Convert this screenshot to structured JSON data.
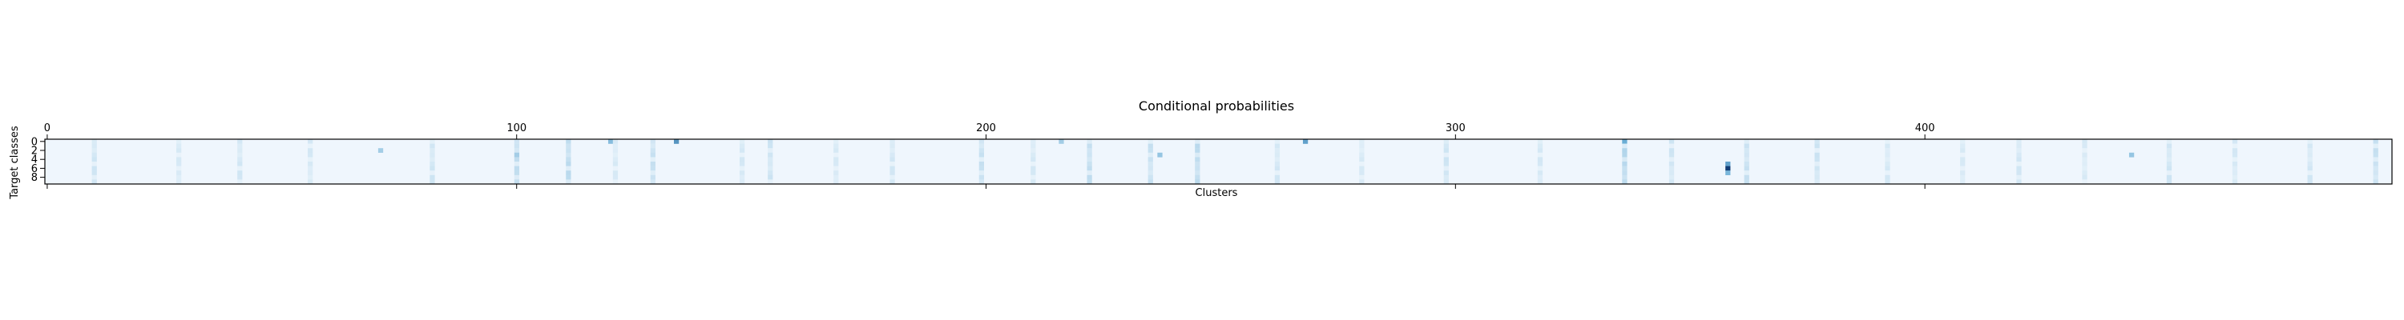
{
  "chart_data": {
    "type": "heatmap",
    "title": "Conditional probabilities",
    "xlabel": "Clusters",
    "ylabel": "Target classes",
    "xlim": [
      0,
      500
    ],
    "ylim": [
      0,
      9
    ],
    "x_ticks": [
      0,
      100,
      200,
      300,
      400
    ],
    "x_tick_labels": [
      "0",
      "100",
      "200",
      "300",
      "400"
    ],
    "y_ticks": [
      0,
      2,
      4,
      6,
      8
    ],
    "y_tick_labels": [
      "0",
      "2",
      "4",
      "6",
      "8"
    ],
    "colormap": "Blues",
    "colors": {
      "low": "#f7fbff",
      "mid": "#6baed6",
      "high": "#08306b"
    },
    "n_clusters": 500,
    "n_classes": 10,
    "baseline_value": 0.03,
    "highlight_cells": [
      {
        "cluster": 358,
        "class": 6,
        "value": 0.95
      },
      {
        "cluster": 358,
        "class": 5,
        "value": 0.55
      },
      {
        "cluster": 358,
        "class": 7,
        "value": 0.45
      },
      {
        "cluster": 134,
        "class": 0,
        "value": 0.6
      },
      {
        "cluster": 268,
        "class": 0,
        "value": 0.55
      },
      {
        "cluster": 336,
        "class": 0,
        "value": 0.5
      },
      {
        "cluster": 120,
        "class": 0,
        "value": 0.4
      },
      {
        "cluster": 71,
        "class": 2,
        "value": 0.3
      },
      {
        "cluster": 237,
        "class": 3,
        "value": 0.35
      },
      {
        "cluster": 100,
        "class": 3,
        "value": 0.3
      },
      {
        "cluster": 444,
        "class": 3,
        "value": 0.35
      },
      {
        "cluster": 216,
        "class": 0,
        "value": 0.3
      }
    ],
    "highlight_columns": [
      {
        "cluster": 10,
        "value": 0.15
      },
      {
        "cluster": 28,
        "value": 0.12
      },
      {
        "cluster": 41,
        "value": 0.14
      },
      {
        "cluster": 56,
        "value": 0.13
      },
      {
        "cluster": 82,
        "value": 0.15
      },
      {
        "cluster": 100,
        "value": 0.2
      },
      {
        "cluster": 111,
        "value": 0.22
      },
      {
        "cluster": 121,
        "value": 0.12
      },
      {
        "cluster": 129,
        "value": 0.18
      },
      {
        "cluster": 148,
        "value": 0.13
      },
      {
        "cluster": 154,
        "value": 0.16
      },
      {
        "cluster": 168,
        "value": 0.12
      },
      {
        "cluster": 180,
        "value": 0.14
      },
      {
        "cluster": 199,
        "value": 0.18
      },
      {
        "cluster": 210,
        "value": 0.13
      },
      {
        "cluster": 222,
        "value": 0.2
      },
      {
        "cluster": 235,
        "value": 0.18
      },
      {
        "cluster": 245,
        "value": 0.22
      },
      {
        "cluster": 262,
        "value": 0.14
      },
      {
        "cluster": 280,
        "value": 0.12
      },
      {
        "cluster": 298,
        "value": 0.15
      },
      {
        "cluster": 318,
        "value": 0.13
      },
      {
        "cluster": 336,
        "value": 0.25
      },
      {
        "cluster": 346,
        "value": 0.15
      },
      {
        "cluster": 362,
        "value": 0.18
      },
      {
        "cluster": 377,
        "value": 0.16
      },
      {
        "cluster": 392,
        "value": 0.13
      },
      {
        "cluster": 408,
        "value": 0.12
      },
      {
        "cluster": 420,
        "value": 0.14
      },
      {
        "cluster": 434,
        "value": 0.12
      },
      {
        "cluster": 452,
        "value": 0.15
      },
      {
        "cluster": 466,
        "value": 0.13
      },
      {
        "cluster": 482,
        "value": 0.14
      },
      {
        "cluster": 496,
        "value": 0.18
      }
    ]
  }
}
